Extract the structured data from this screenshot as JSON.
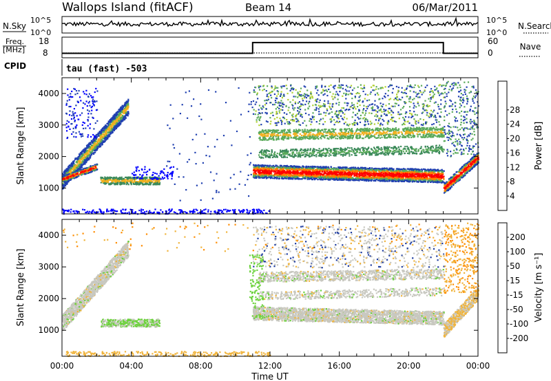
{
  "header": {
    "title": "Wallops Island (fitACF)",
    "beam": "Beam 14",
    "date": "06/Mar/2011"
  },
  "noise_panel": {
    "left_label": "N.Sky",
    "right_label": "N.Search",
    "left_ticks": [
      "10^5",
      "10^0"
    ],
    "right_ticks": [
      "10^5",
      "10^0"
    ]
  },
  "freq_panel": {
    "left_label_line1": "Freq.",
    "left_label_line2": "[MHz]",
    "right_label": "Nave",
    "left_ticks": [
      "18",
      "8"
    ],
    "right_ticks": [
      "60",
      "0"
    ]
  },
  "cpid": {
    "label": "CPID",
    "text": "tau (fast) -503"
  },
  "power_panel": {
    "ylabel": "Slant Range [km]",
    "yticks": [
      "1000",
      "2000",
      "3000",
      "4000"
    ],
    "colorbar_label": "Power [dB]",
    "colorbar_ticks": [
      "4",
      "8",
      "12",
      "16",
      "20",
      "24",
      "28"
    ],
    "colors": [
      "#0000ff",
      "#2040b0",
      "#3c8a5a",
      "#5aaa5a",
      "#b0d030",
      "#f0b020",
      "#ff7f00",
      "#ff4000",
      "#ff0000"
    ]
  },
  "velocity_panel": {
    "ylabel": "Slant Range [km]",
    "yticks": [
      "1000",
      "2000",
      "3000",
      "4000"
    ],
    "colorbar_label": "Velocity [m s⁻¹]",
    "colorbar_ticks": [
      "200",
      "100",
      "50",
      "15",
      "-15",
      "-50",
      "-100",
      "-200"
    ],
    "colors": [
      "#1e3ca0",
      "#2e6e8c",
      "#3c9650",
      "#6cd23c",
      "#c8c8c0",
      "#f0b43c",
      "#ff8c00",
      "#ff4600",
      "#ff0000"
    ]
  },
  "xaxis": {
    "label": "Time UT",
    "ticks": [
      "00:00",
      "04:00",
      "08:00",
      "12:00",
      "16:00",
      "20:00",
      "00:00"
    ]
  },
  "chart_data": {
    "type": "heatmap",
    "title": "Wallops Island (fitACF)",
    "xlabel": "Time UT",
    "ylabel": "Slant Range [km]",
    "xlim": [
      0,
      24
    ],
    "ylim": [
      180,
      4500
    ],
    "frequency_series": {
      "name": "Freq.",
      "x": [
        0,
        11,
        11,
        22,
        22,
        24
      ],
      "values": [
        10.5,
        10.5,
        16.5,
        16.5,
        10.5,
        10.5
      ]
    },
    "echo_regions": [
      {
        "t0": 0.0,
        "t1": 3.8,
        "r0": 1150,
        "r1": 4300,
        "note": "rising band"
      },
      {
        "t0": 2.2,
        "t1": 5.6,
        "r0": 1000,
        "r1": 1400
      },
      {
        "t0": 11.0,
        "t1": 22.0,
        "r0": 1100,
        "r1": 4300
      },
      {
        "t0": 22.0,
        "t1": 24.0,
        "r0": 900,
        "r1": 4400
      }
    ],
    "power_colorbar": {
      "label": "Power [dB]",
      "ticks": [
        4,
        8,
        12,
        16,
        20,
        24,
        28
      ]
    },
    "velocity_colorbar": {
      "label": "Velocity [m s⁻¹]",
      "ticks": [
        200,
        100,
        50,
        15,
        -15,
        -50,
        -100,
        -200
      ]
    }
  }
}
